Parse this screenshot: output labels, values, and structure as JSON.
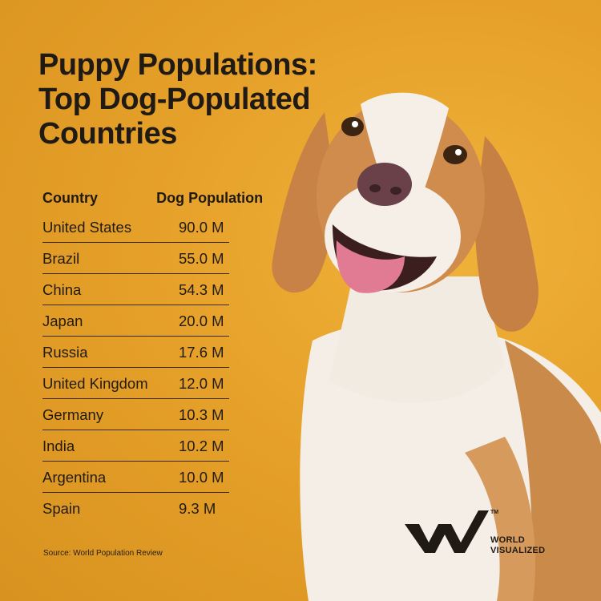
{
  "title": "Puppy Populations: Top Dog-Populated Countries",
  "table": {
    "headers": {
      "country": "Country",
      "population": "Dog Population"
    },
    "rows": [
      {
        "country": "United States",
        "population": "90.0 M"
      },
      {
        "country": "Brazil",
        "population": "55.0 M"
      },
      {
        "country": "China",
        "population": "54.3 M"
      },
      {
        "country": "Japan",
        "population": "20.0 M"
      },
      {
        "country": "Russia",
        "population": "17.6 M"
      },
      {
        "country": "United Kingdom",
        "population": "12.0 M"
      },
      {
        "country": "Germany",
        "population": "10.3 M"
      },
      {
        "country": "India",
        "population": "10.2 M"
      },
      {
        "country": "Argentina",
        "population": "10.0 M"
      },
      {
        "country": "Spain",
        "population": "9.3 M"
      }
    ]
  },
  "source": "Source: World Population Review",
  "logo": {
    "line1": "WORLD",
    "line2": "VISUALIZED",
    "tm": "TM"
  },
  "colors": {
    "background": "#e7a42b",
    "text": "#1f1a14",
    "dog_tan": "#c9833f",
    "dog_white": "#f4eee6"
  },
  "chart_data": {
    "type": "table",
    "title": "Puppy Populations: Top Dog-Populated Countries",
    "columns": [
      "Country",
      "Dog Population"
    ],
    "categories": [
      "United States",
      "Brazil",
      "China",
      "Japan",
      "Russia",
      "United Kingdom",
      "Germany",
      "India",
      "Argentina",
      "Spain"
    ],
    "values": [
      90.0,
      55.0,
      54.3,
      20.0,
      17.6,
      12.0,
      10.3,
      10.2,
      10.0,
      9.3
    ],
    "unit": "M"
  }
}
